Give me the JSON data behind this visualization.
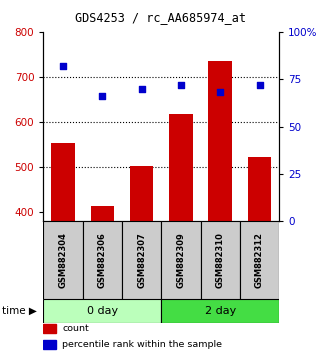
{
  "title": "GDS4253 / rc_AA685974_at",
  "samples": [
    "GSM882304",
    "GSM882306",
    "GSM882307",
    "GSM882309",
    "GSM882310",
    "GSM882312"
  ],
  "counts": [
    553,
    413,
    502,
    618,
    735,
    523
  ],
  "percentiles": [
    82,
    66,
    70,
    72,
    68,
    72
  ],
  "bar_color": "#cc0000",
  "scatter_color": "#0000cc",
  "ylim_left": [
    380,
    800
  ],
  "ylim_right": [
    0,
    100
  ],
  "yticks_left": [
    400,
    500,
    600,
    700,
    800
  ],
  "yticks_right": [
    0,
    25,
    50,
    75,
    100
  ],
  "ytick_labels_right": [
    "0",
    "25",
    "50",
    "75",
    "100%"
  ],
  "bar_width": 0.6,
  "legend_items": [
    {
      "label": "count",
      "color": "#cc0000"
    },
    {
      "label": "percentile rank within the sample",
      "color": "#0000cc"
    }
  ],
  "group_label": "time",
  "groups_info": [
    {
      "label": "0 day",
      "start": 0,
      "end": 2,
      "color": "#bbffbb"
    },
    {
      "label": "2 day",
      "start": 3,
      "end": 5,
      "color": "#44dd44"
    }
  ],
  "sample_box_color": "#cccccc",
  "dotted_lines": [
    500,
    600,
    700
  ]
}
